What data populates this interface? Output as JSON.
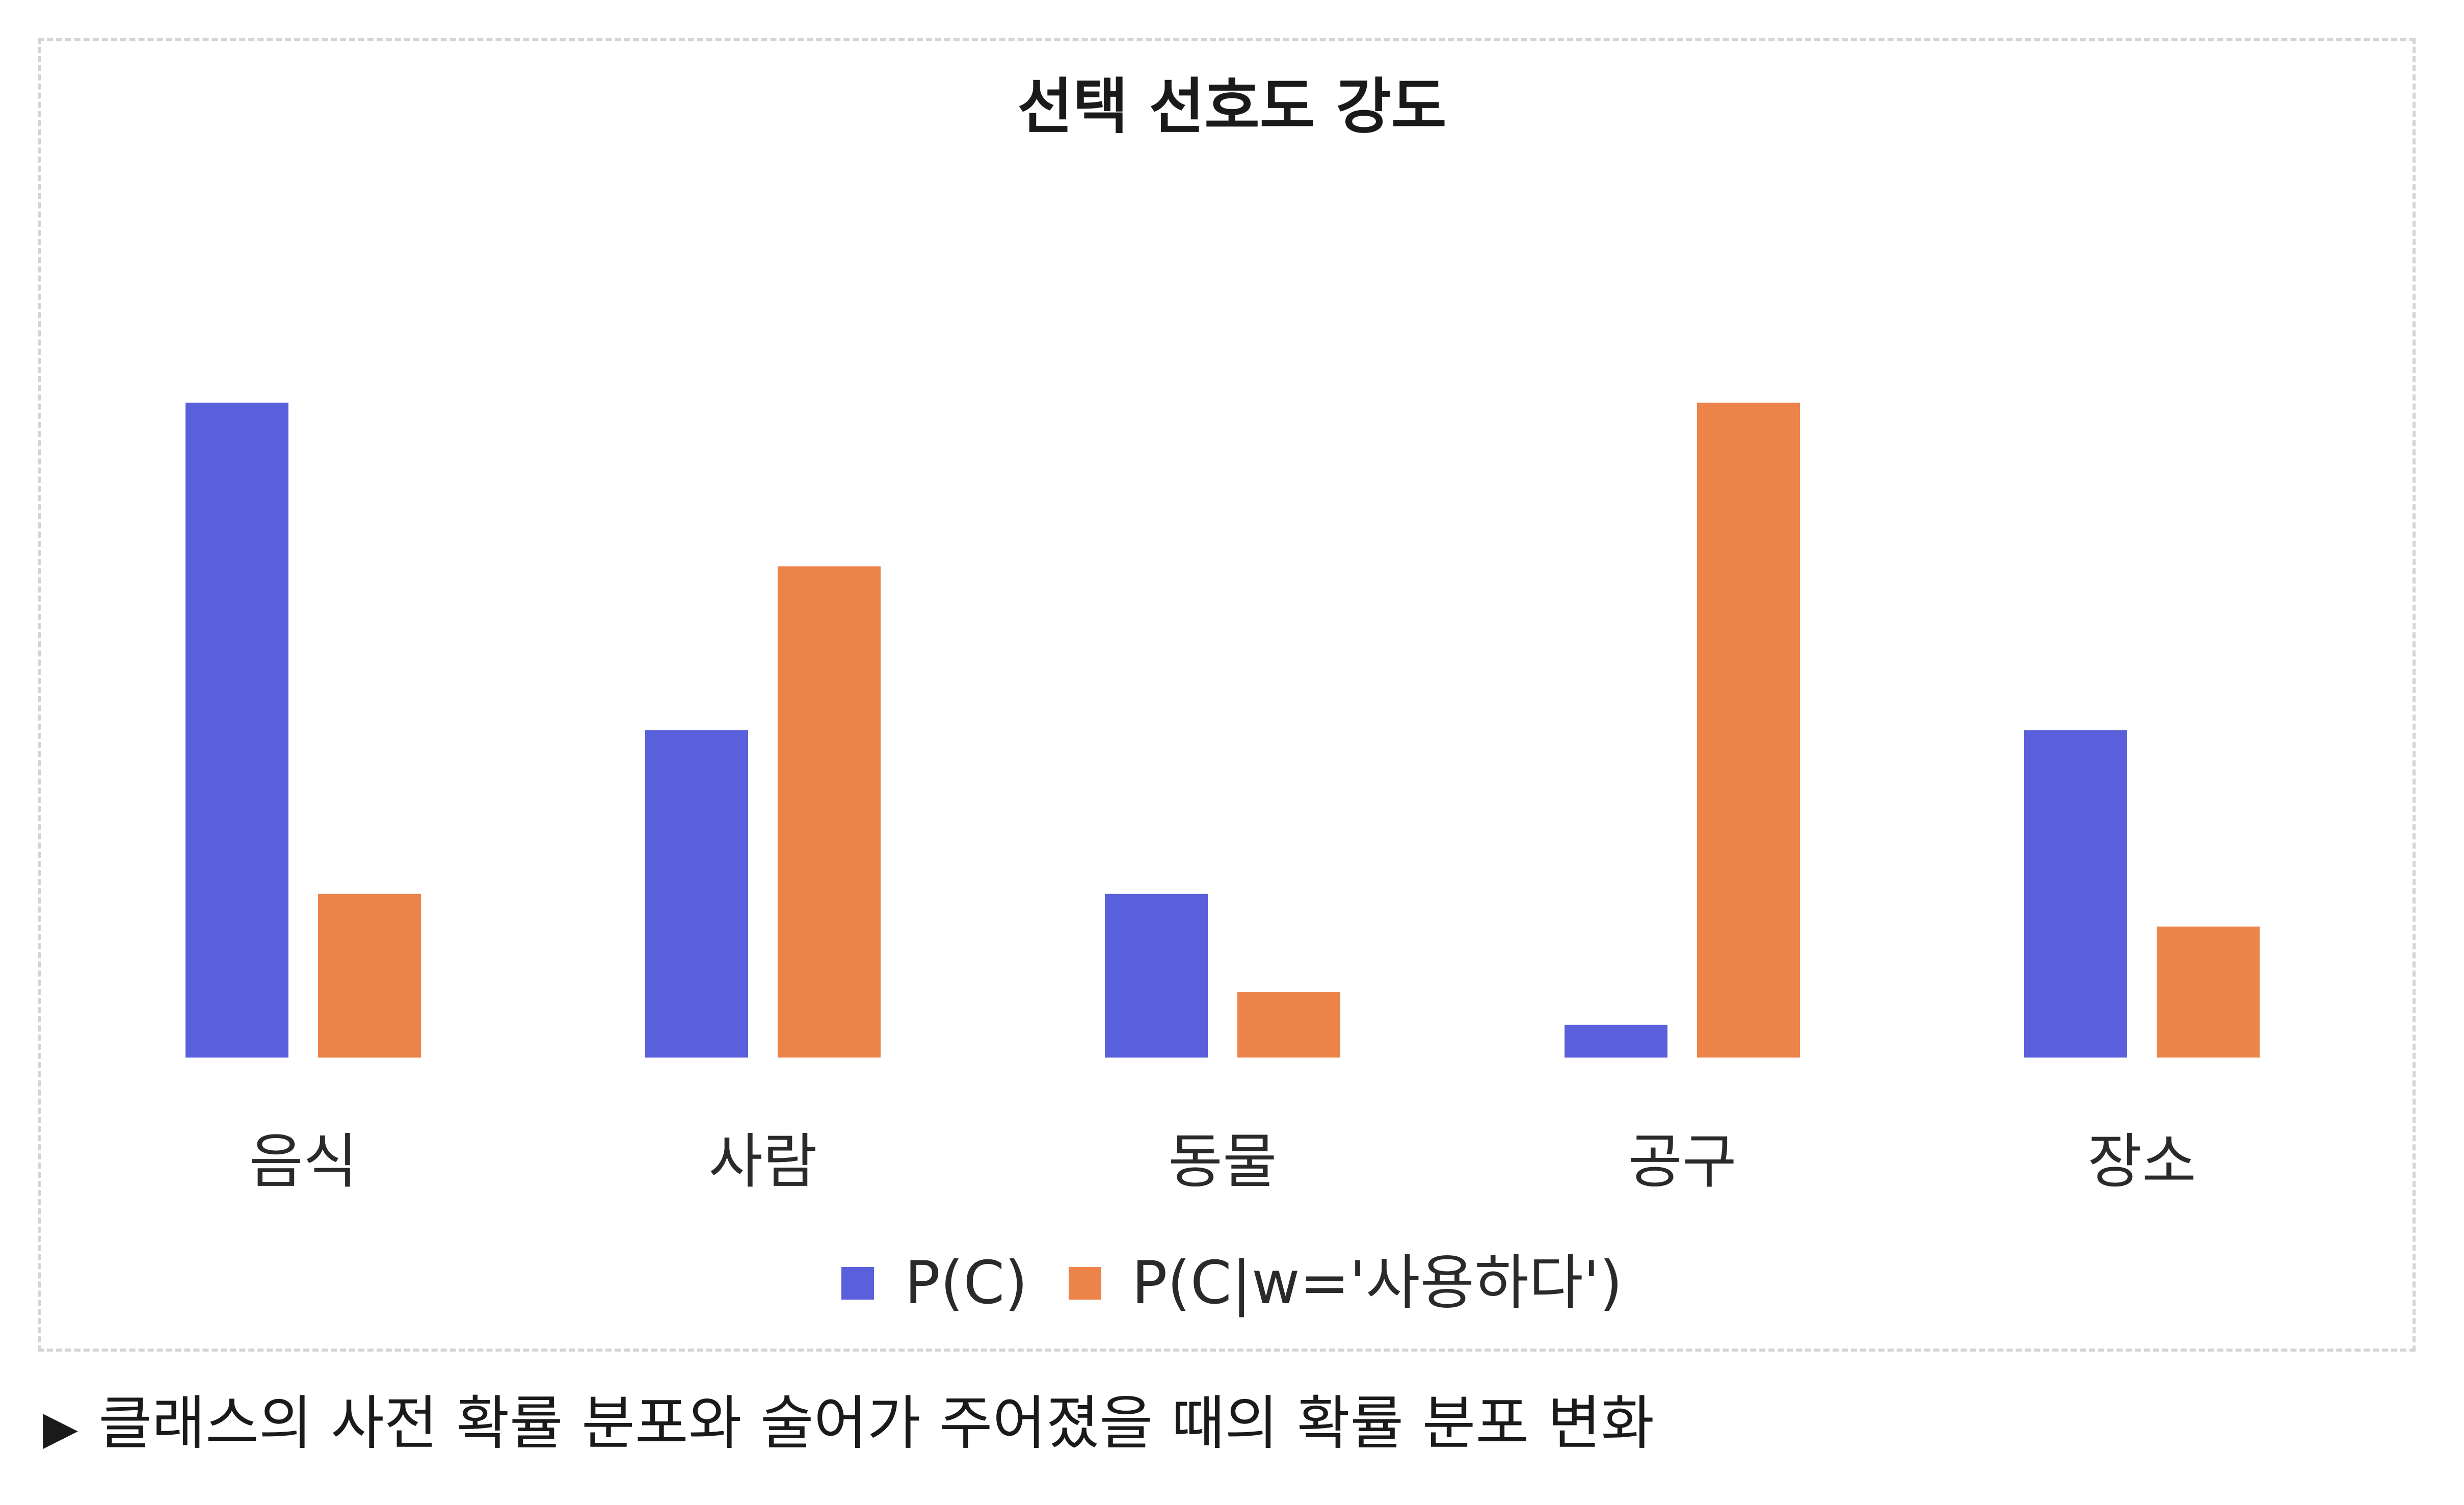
{
  "chart_data": {
    "type": "bar",
    "title": "선택 선호도 강도",
    "categories": [
      "음식",
      "사람",
      "동물",
      "공구",
      "장소"
    ],
    "series": [
      {
        "name": "P(C)",
        "values": [
          0.4,
          0.2,
          0.1,
          0.02,
          0.2
        ],
        "color": "#5a5fdb"
      },
      {
        "name": "P(C|w='사용하다')",
        "values": [
          0.1,
          0.3,
          0.04,
          0.4,
          0.08
        ],
        "color": "#ec8349"
      }
    ],
    "xlabel": "",
    "ylabel": "",
    "ylim": [
      0,
      0.4
    ],
    "grid": false,
    "y_axis_shown": false,
    "legend_position": "bottom"
  },
  "caption": {
    "marker": "▶",
    "text": "클래스의 사전 확률 분포와 술어가 주어졌을 때의 확률 분포 변화"
  }
}
